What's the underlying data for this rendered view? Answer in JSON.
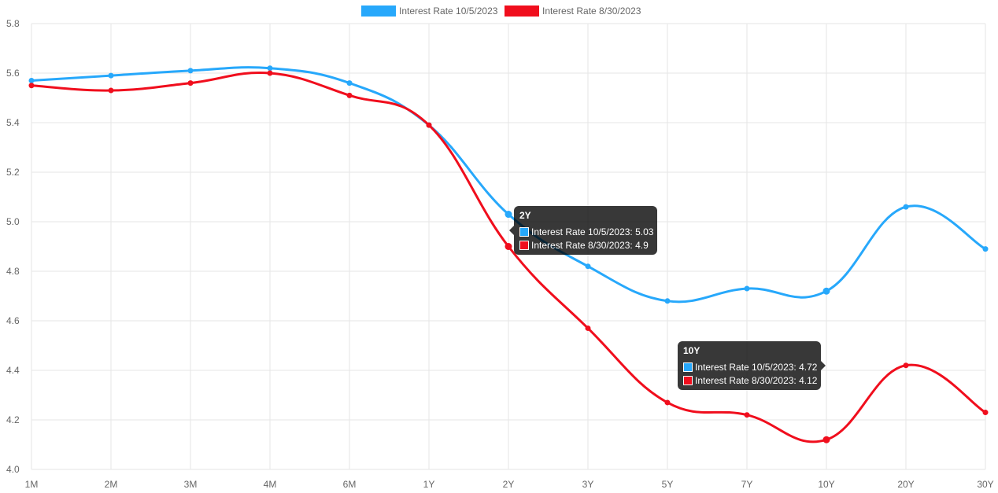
{
  "chart_data": {
    "type": "line",
    "categories": [
      "1M",
      "2M",
      "3M",
      "4M",
      "6M",
      "1Y",
      "2Y",
      "3Y",
      "5Y",
      "7Y",
      "10Y",
      "20Y",
      "30Y"
    ],
    "series": [
      {
        "name": "Interest Rate 10/5/2023",
        "color": "#27A8FB",
        "values": [
          5.57,
          5.59,
          5.61,
          5.62,
          5.56,
          5.39,
          5.03,
          4.82,
          4.68,
          4.73,
          4.72,
          5.06,
          4.89
        ]
      },
      {
        "name": "Interest Rate 8/30/2023",
        "color": "#F00E1D",
        "values": [
          5.55,
          5.53,
          5.56,
          5.6,
          5.51,
          5.39,
          4.9,
          4.57,
          4.27,
          4.22,
          4.12,
          4.42,
          4.23
        ]
      }
    ],
    "ylim": [
      4.0,
      5.8
    ],
    "yticks": [
      "4.0",
      "4.2",
      "4.4",
      "4.6",
      "4.8",
      "5.0",
      "5.2",
      "5.4",
      "5.6",
      "5.8"
    ],
    "grid": true,
    "legend_position": "top",
    "tooltips": [
      {
        "title": "2Y",
        "rows": [
          "Interest Rate 10/5/2023: 5.03",
          "Interest Rate 8/30/2023: 4.9"
        ]
      },
      {
        "title": "10Y",
        "rows": [
          "Interest Rate 10/5/2023: 4.72",
          "Interest Rate 8/30/2023: 4.12"
        ]
      }
    ]
  }
}
